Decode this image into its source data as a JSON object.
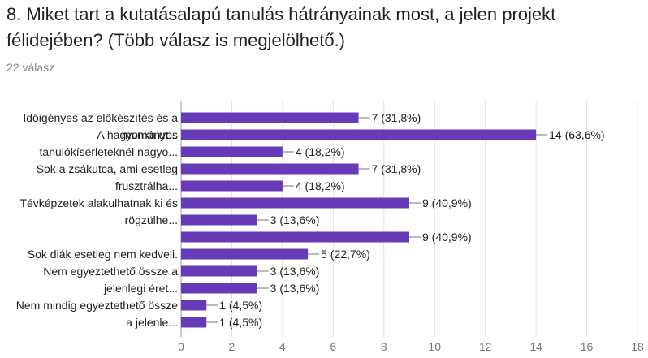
{
  "question": {
    "title": "8. Miket tart a kutatásalapú tanulás hátrányainak most, a jelen projekt félidejében? (Több válasz is megjelölhető.)",
    "responses": "22 válasz"
  },
  "colors": {
    "bar": "#673ab7",
    "grid": "#e0e0e0",
    "axis": "#9e9e9e",
    "text": "#202124",
    "muted": "#757575"
  },
  "chart_data": {
    "type": "bar",
    "orientation": "horizontal",
    "xlim": [
      0,
      18
    ],
    "xticks": [
      0,
      2,
      4,
      6,
      8,
      10,
      12,
      14,
      16,
      18
    ],
    "grid": true,
    "category_labels": [
      {
        "lines": [
          "Időigényes az előkészítés és a",
          "munka ut..."
        ],
        "bars": [
          0,
          1
        ]
      },
      {
        "lines": [
          "A hagyományos",
          "tanulókísérleteknél nagyo..."
        ],
        "bars": [
          1,
          2
        ]
      },
      {
        "lines": [
          "Sok a zsákutca, ami esetleg",
          "frusztrálha..."
        ],
        "bars": [
          3,
          4
        ]
      },
      {
        "lines": [
          "Tévképzetek alakulhatnak ki és",
          "rögzülhe..."
        ],
        "bars": [
          5,
          6
        ]
      },
      {
        "lines": [
          "Sok diák esetleg nem kedveli."
        ],
        "bars": [
          8,
          8
        ]
      },
      {
        "lines": [
          "Nem egyeztethető össze a",
          "jelenlegi éret..."
        ],
        "bars": [
          9,
          10
        ]
      },
      {
        "lines": [
          "Nem mindig egyeztethető össze",
          "a jelenle..."
        ],
        "bars": [
          11,
          12
        ]
      }
    ],
    "values": [
      7,
      14,
      4,
      7,
      4,
      9,
      3,
      9,
      5,
      3,
      3,
      1,
      1
    ],
    "value_labels": [
      "7 (31,8%)",
      "14 (63,6%)",
      "4 (18,2%)",
      "7 (31,8%)",
      "4 (18,2%)",
      "9 (40,9%)",
      "3 (13,6%)",
      "9 (40,9%)",
      "5 (22,7%)",
      "3 (13,6%)",
      "3 (13,6%)",
      "1 (4,5%)",
      "1 (4,5%)"
    ]
  }
}
